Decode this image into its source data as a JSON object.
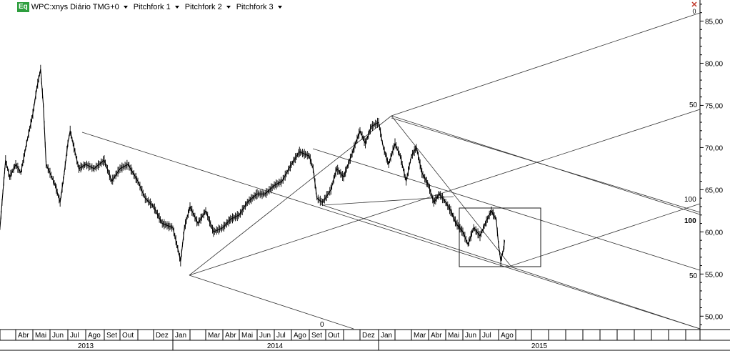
{
  "toolbar": {
    "badge": "Eq",
    "symbol_label": "WPC:xnys Diário TMG+0",
    "menus": [
      "Pitchfork 1",
      "Pitchfork 2",
      "Pitchfork 3"
    ],
    "close_digit": "0"
  },
  "chart_data": {
    "type": "line",
    "title": "WPC:xnys Diário TMG+0",
    "ylim": [
      48.5,
      87.5
    ],
    "y_ticks": [
      50,
      55,
      60,
      65,
      70,
      75,
      80,
      85
    ],
    "y_tick_labels": [
      "50,00",
      "55,00",
      "60,00",
      "65,00",
      "70,00",
      "75,00",
      "80,00",
      "85,00"
    ],
    "month_labels": [
      "Abr",
      "Mai",
      "Jun",
      "Jul",
      "Ago",
      "Set",
      "Out",
      "Dez",
      "Jan",
      "Mar",
      "Abr",
      "Mai",
      "Jun",
      "Jul",
      "Ago",
      "Set",
      "Out",
      "Dez",
      "Jan",
      "Mar",
      "Abr",
      "Mai",
      "Jun",
      "Jul",
      "Ago"
    ],
    "year_labels": [
      "2013",
      "2014",
      "2015"
    ],
    "price_path": [
      [
        "2013-03-01",
        60.5
      ],
      [
        "2013-03-05",
        63.5
      ],
      [
        "2013-03-12",
        68.5
      ],
      [
        "2013-03-20",
        66.5
      ],
      [
        "2013-04-01",
        68.0
      ],
      [
        "2013-04-10",
        67.0
      ],
      [
        "2013-04-20",
        70.5
      ],
      [
        "2013-05-01",
        74.0
      ],
      [
        "2013-05-08",
        77.0
      ],
      [
        "2013-05-15",
        79.3
      ],
      [
        "2013-05-20",
        75.0
      ],
      [
        "2013-05-25",
        68.0
      ],
      [
        "2013-06-01",
        67.0
      ],
      [
        "2013-06-10",
        65.5
      ],
      [
        "2013-06-18",
        63.5
      ],
      [
        "2013-06-25",
        67.0
      ],
      [
        "2013-07-01",
        70.5
      ],
      [
        "2013-07-05",
        72.0
      ],
      [
        "2013-07-10",
        70.5
      ],
      [
        "2013-07-20",
        67.5
      ],
      [
        "2013-08-01",
        68.0
      ],
      [
        "2013-08-15",
        67.5
      ],
      [
        "2013-09-01",
        68.5
      ],
      [
        "2013-09-15",
        66.0
      ],
      [
        "2013-10-01",
        67.5
      ],
      [
        "2013-10-15",
        68.0
      ],
      [
        "2013-11-01",
        66.0
      ],
      [
        "2013-11-15",
        64.0
      ],
      [
        "2013-12-01",
        63.0
      ],
      [
        "2013-12-15",
        61.0
      ],
      [
        "2014-01-01",
        60.5
      ],
      [
        "2014-01-10",
        58.0
      ],
      [
        "2014-01-15",
        56.5
      ],
      [
        "2014-01-22",
        60.5
      ],
      [
        "2014-02-01",
        63.0
      ],
      [
        "2014-02-15",
        61.0
      ],
      [
        "2014-03-01",
        62.5
      ],
      [
        "2014-03-15",
        60.0
      ],
      [
        "2014-04-01",
        60.5
      ],
      [
        "2014-04-15",
        61.5
      ],
      [
        "2014-05-01",
        62.0
      ],
      [
        "2014-05-15",
        63.5
      ],
      [
        "2014-06-01",
        64.5
      ],
      [
        "2014-06-15",
        64.5
      ],
      [
        "2014-07-01",
        65.5
      ],
      [
        "2014-07-15",
        66.0
      ],
      [
        "2014-08-01",
        68.0
      ],
      [
        "2014-08-15",
        69.5
      ],
      [
        "2014-09-01",
        69.0
      ],
      [
        "2014-09-08",
        67.5
      ],
      [
        "2014-09-15",
        64.0
      ],
      [
        "2014-09-25",
        63.5
      ],
      [
        "2014-10-10",
        65.0
      ],
      [
        "2014-10-20",
        67.5
      ],
      [
        "2014-11-01",
        66.5
      ],
      [
        "2014-11-15",
        69.0
      ],
      [
        "2014-12-01",
        72.0
      ],
      [
        "2014-12-10",
        70.5
      ],
      [
        "2014-12-20",
        72.5
      ],
      [
        "2015-01-01",
        73.0
      ],
      [
        "2015-01-10",
        70.0
      ],
      [
        "2015-01-20",
        68.0
      ],
      [
        "2015-02-01",
        70.5
      ],
      [
        "2015-02-10",
        69.0
      ],
      [
        "2015-02-20",
        66.0
      ],
      [
        "2015-03-01",
        69.0
      ],
      [
        "2015-03-10",
        70.0
      ],
      [
        "2015-03-20",
        67.0
      ],
      [
        "2015-04-01",
        65.5
      ],
      [
        "2015-04-10",
        63.5
      ],
      [
        "2015-04-20",
        64.5
      ],
      [
        "2015-05-01",
        63.5
      ],
      [
        "2015-05-10",
        62.5
      ],
      [
        "2015-05-20",
        61.0
      ],
      [
        "2015-06-01",
        60.0
      ],
      [
        "2015-06-10",
        58.5
      ],
      [
        "2015-06-20",
        60.5
      ],
      [
        "2015-07-01",
        59.5
      ],
      [
        "2015-07-10",
        61.0
      ],
      [
        "2015-07-20",
        62.5
      ],
      [
        "2015-07-28",
        61.5
      ],
      [
        "2015-08-01",
        58.5
      ],
      [
        "2015-08-05",
        56.5
      ],
      [
        "2015-08-10",
        58.0
      ],
      [
        "2015-08-12",
        59.0
      ]
    ],
    "pitchfork_labels": [
      {
        "text": "50",
        "at": "upper handle, right"
      },
      {
        "text": "100",
        "at": "middle line, right"
      },
      {
        "text": "100",
        "at": "middle line, right, bold"
      },
      {
        "text": "50",
        "at": "lower handle, right"
      },
      {
        "text": "0",
        "at": "bottom left"
      }
    ],
    "grid": false
  }
}
